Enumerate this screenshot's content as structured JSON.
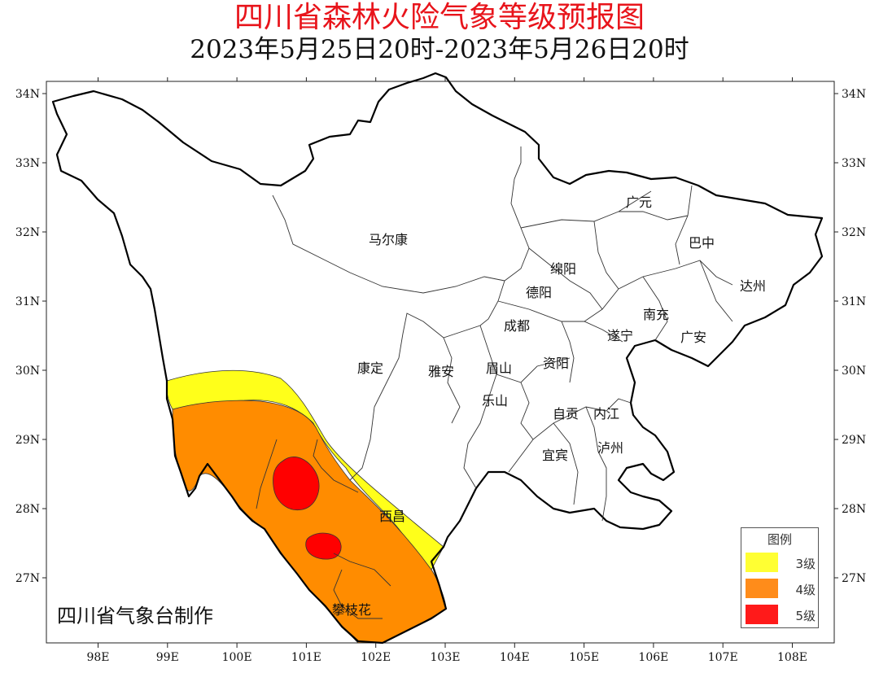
{
  "title": "四川省森林火险气象等级预报图",
  "subtitle": "2023年5月25日20时-2023年5月26日20时",
  "credit": "四川省气象台制作",
  "axes": {
    "lon_ticks": [
      "98E",
      "99E",
      "100E",
      "101E",
      "102E",
      "103E",
      "104E",
      "105E",
      "106E",
      "107E",
      "108E"
    ],
    "lat_ticks": [
      "34N",
      "33N",
      "32N",
      "31N",
      "30N",
      "29N",
      "28N",
      "27N"
    ]
  },
  "cities": [
    {
      "name": "广元"
    },
    {
      "name": "巴中"
    },
    {
      "name": "马尔康"
    },
    {
      "name": "绵阳"
    },
    {
      "name": "达州"
    },
    {
      "name": "德阳"
    },
    {
      "name": "南充"
    },
    {
      "name": "成都"
    },
    {
      "name": "遂宁"
    },
    {
      "name": "广安"
    },
    {
      "name": "康定"
    },
    {
      "name": "雅安"
    },
    {
      "name": "眉山"
    },
    {
      "name": "资阳"
    },
    {
      "name": "乐山"
    },
    {
      "name": "自贡"
    },
    {
      "name": "内江"
    },
    {
      "name": "宜宾"
    },
    {
      "name": "泸州"
    },
    {
      "name": "西昌"
    },
    {
      "name": "攀枝花"
    }
  ],
  "legend": {
    "title": "图例",
    "items": [
      {
        "label": "3级",
        "color": "#ffff33"
      },
      {
        "label": "4级",
        "color": "#ff8c1a"
      },
      {
        "label": "5级",
        "color": "#ff1a1a"
      }
    ]
  },
  "colors": {
    "level3": "#ffff1a",
    "level4": "#ff8c00",
    "level5": "#ff0000",
    "title": "#e8141b"
  }
}
